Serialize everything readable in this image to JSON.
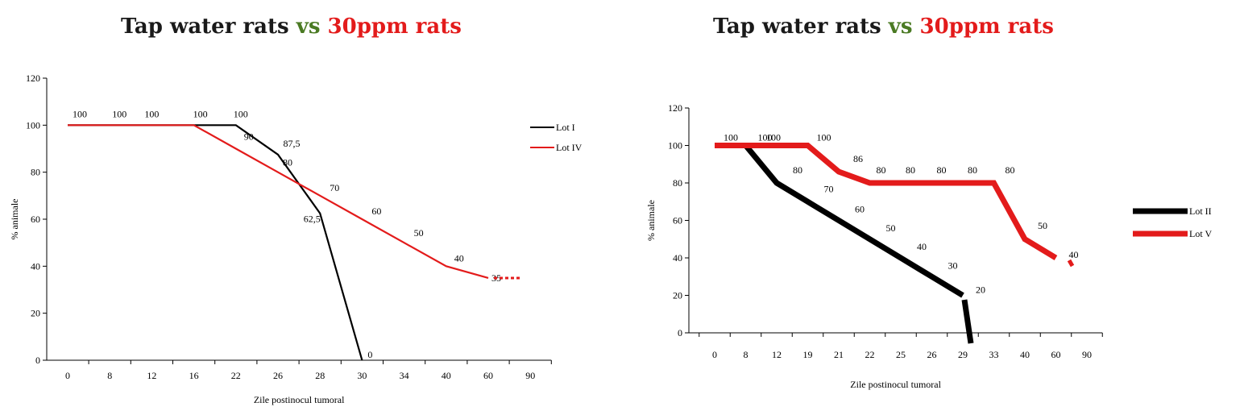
{
  "titles": [
    {
      "part1": "Tap water rats",
      "vs": "vs",
      "part2": "30ppm rats"
    },
    {
      "part1": "Tap water rats",
      "vs": "vs",
      "part2": "30ppm rats"
    }
  ],
  "colors": {
    "black_series": "#000000",
    "red_series": "#e31b1b",
    "vs_green": "#4a7a23"
  },
  "chart_data": [
    {
      "type": "line",
      "title": "Tap water rats vs 30ppm rats",
      "xlabel": "Zile postinocul tumoral",
      "ylabel": "% animale",
      "ylim": [
        0,
        120
      ],
      "yticks": [
        0,
        20,
        40,
        60,
        80,
        100,
        120
      ],
      "categories": [
        "0",
        "8",
        "12",
        "16",
        "22",
        "26",
        "28",
        "30",
        "34",
        "40",
        "60",
        "90"
      ],
      "grid": false,
      "legend_position": "right",
      "series": [
        {
          "name": "Lot I",
          "color": "#000000",
          "x": [
            "0",
            "8",
            "12",
            "16",
            "22",
            "26",
            "28",
            "30"
          ],
          "values": [
            100,
            100,
            100,
            100,
            100,
            87.5,
            62.5,
            0
          ],
          "labels": [
            "100",
            "100",
            "100",
            "100",
            "100",
            "87,5",
            "62,5",
            "0"
          ]
        },
        {
          "name": "Lot IV",
          "color": "#e31b1b",
          "x": [
            "0",
            "8",
            "12",
            "16",
            "22",
            "26",
            "28",
            "30",
            "34",
            "40",
            "60"
          ],
          "values": [
            100,
            100,
            100,
            100,
            90,
            80,
            70,
            60,
            50,
            40,
            35
          ],
          "labels": [
            "",
            "",
            "",
            "",
            "90",
            "80",
            "70",
            "60",
            "50",
            "40",
            "35"
          ]
        }
      ]
    },
    {
      "type": "line",
      "title": "Tap water rats vs 30ppm rats",
      "xlabel": "Zile postinocul tumoral",
      "ylabel": "% animale",
      "ylim": [
        0,
        120
      ],
      "yticks": [
        0,
        20,
        40,
        60,
        80,
        100,
        120
      ],
      "categories": [
        "0",
        "8",
        "12",
        "19",
        "21",
        "22",
        "25",
        "26",
        "29",
        "33",
        "40",
        "60",
        "90"
      ],
      "grid": false,
      "legend_position": "right",
      "series": [
        {
          "name": "Lot II",
          "color": "#000000",
          "x": [
            "0",
            "8",
            "12",
            "19",
            "21",
            "22",
            "25",
            "26",
            "29"
          ],
          "values": [
            100,
            100,
            80,
            70,
            60,
            50,
            40,
            30,
            20
          ],
          "labels": [
            "100",
            "100",
            "80",
            "70",
            "60",
            "50",
            "40",
            "30",
            "20"
          ]
        },
        {
          "name": "Lot V",
          "color": "#e31b1b",
          "x": [
            "0",
            "8",
            "12",
            "19",
            "21",
            "22",
            "25",
            "26",
            "29",
            "33",
            "40",
            "60"
          ],
          "values": [
            100,
            100,
            100,
            100,
            86,
            80,
            80,
            80,
            80,
            80,
            50,
            40
          ],
          "labels": [
            "",
            "",
            "100",
            "100",
            "86",
            "80",
            "80",
            "80",
            "80",
            "80",
            "50",
            "40"
          ]
        }
      ]
    }
  ]
}
